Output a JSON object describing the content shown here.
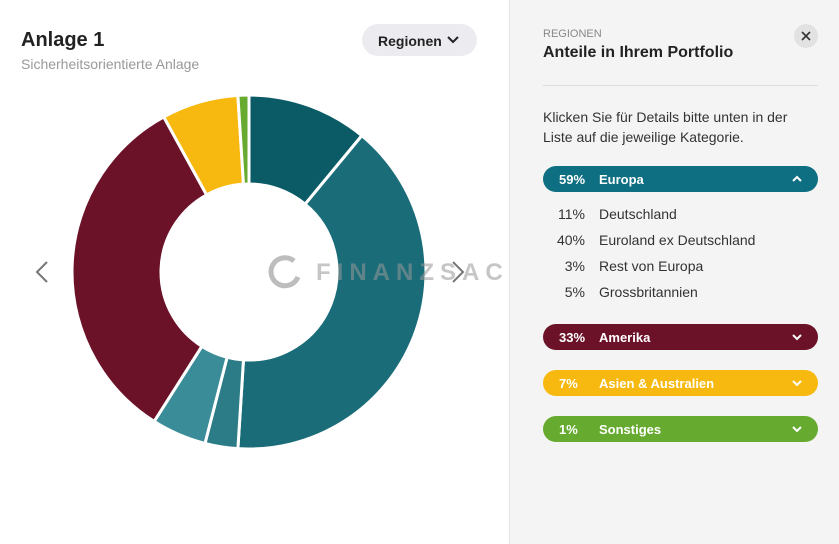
{
  "header": {
    "title": "Anlage 1",
    "subtitle": "Sicherheitsorientierte Anlage"
  },
  "dropdown": "Regionen",
  "watermark": "FINANZSACHE",
  "panel": {
    "kicker": "REGIONEN",
    "title": "Anteile in Ihrem Portfolio",
    "hint": "Klicken Sie für Details bitte unten in der Liste auf die jeweilige Kategorie.",
    "groups": [
      {
        "name": "Europa",
        "share": {
          "value": 59,
          "label": "59%"
        },
        "color": "#0e6f82",
        "expanded": true,
        "items": [
          {
            "name": "Deutschland",
            "share": {
              "value": 11,
              "label": "11%"
            },
            "color": "#0b5b67"
          },
          {
            "name": "Euroland ex Deutschland",
            "share": {
              "value": 40,
              "label": "40%"
            },
            "color": "#1a6d78"
          },
          {
            "name": "Rest von Europa",
            "share": {
              "value": 3,
              "label": "3%"
            },
            "color": "#2b7c86"
          },
          {
            "name": "Grossbritannien",
            "share": {
              "value": 5,
              "label": "5%"
            },
            "color": "#3a8c98"
          }
        ]
      },
      {
        "name": "Amerika",
        "share": {
          "value": 33,
          "label": "33%"
        },
        "color": "#6b1229",
        "expanded": false
      },
      {
        "name": "Asien & Australien",
        "share": {
          "value": 7,
          "label": "7%"
        },
        "color": "#f7b90f",
        "expanded": false
      },
      {
        "name": "Sonstiges",
        "share": {
          "value": 1,
          "label": "1%"
        },
        "color": "#66aa2f",
        "expanded": false
      }
    ]
  }
}
